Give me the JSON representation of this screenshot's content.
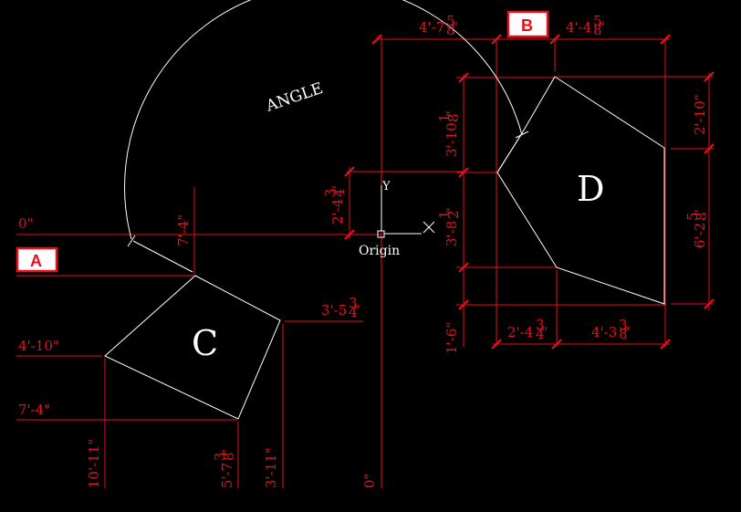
{
  "colors": {
    "background": "#000000",
    "dimension": "#e8101a",
    "geometry": "#ffffff"
  },
  "badges": {
    "a": "A",
    "b": "B"
  },
  "shapes": {
    "c": "C",
    "d": "D"
  },
  "labels": {
    "angle": "ANGLE",
    "origin": "Origin",
    "axis_y": "Y",
    "axis_x": "X"
  },
  "icons": {
    "origin_marker": "square-marker",
    "x_axis": "x-cross-icon"
  },
  "dims": {
    "zero_h": "0\"",
    "zero_v": "0\"",
    "top_left": "4'-7",
    "top_left_frac": [
      "5",
      "8"
    ],
    "top_right": "4'-4",
    "top_right_frac": [
      "5",
      "8"
    ],
    "right_top": "2'-10\"",
    "right_mid": "6'-2",
    "right_mid_frac": [
      "5",
      "8"
    ],
    "d_upper": "3'-10",
    "d_upper_frac": [
      "1",
      "8"
    ],
    "d_lower": "3'-8",
    "d_lower_frac": [
      "1",
      "2"
    ],
    "d_bottom": "1'-6\"",
    "bottom_left": "2'-4",
    "bottom_left_frac": [
      "3",
      "4"
    ],
    "bottom_right": "4'-3",
    "bottom_right_frac": [
      "3",
      "8"
    ],
    "origin_vert": "2'-4",
    "origin_vert_frac": [
      "3",
      "4"
    ],
    "c_top": "7'-4\"",
    "c_right": "3'-5",
    "c_right_frac": [
      "3",
      "4"
    ],
    "c_h1": "4'-10\"",
    "c_h2": "7'-4\"",
    "c_v1": "10'-11\"",
    "c_v2": "5'-7",
    "c_v2_frac": [
      "3",
      "8"
    ],
    "c_v3": "3'-11\""
  }
}
